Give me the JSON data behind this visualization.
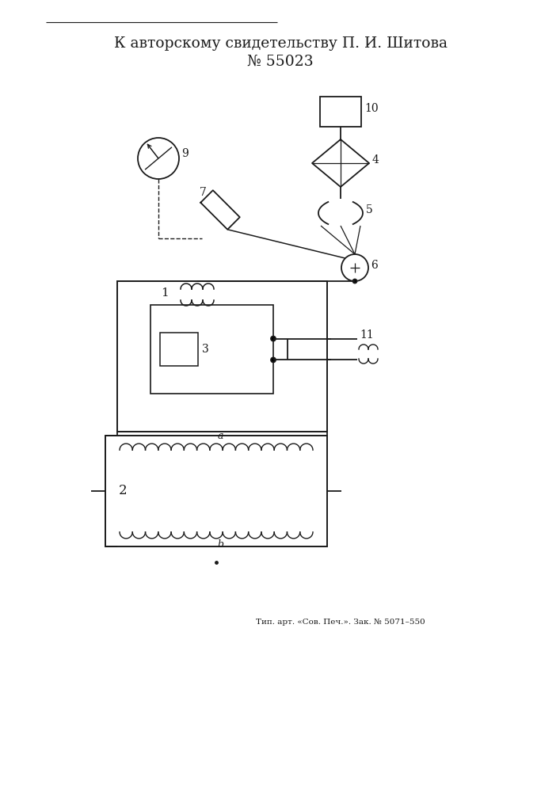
{
  "title_line1": "К авторскому свидетельству П. И. Шитова",
  "title_line2": "№ 55023",
  "footer": "Тип. арт. «Сов. Печ.». Зак. № 5071–550",
  "bg_color": "#ffffff",
  "line_color": "#1a1a1a",
  "title_fontsize": 13.5,
  "footer_fontsize": 7.5
}
